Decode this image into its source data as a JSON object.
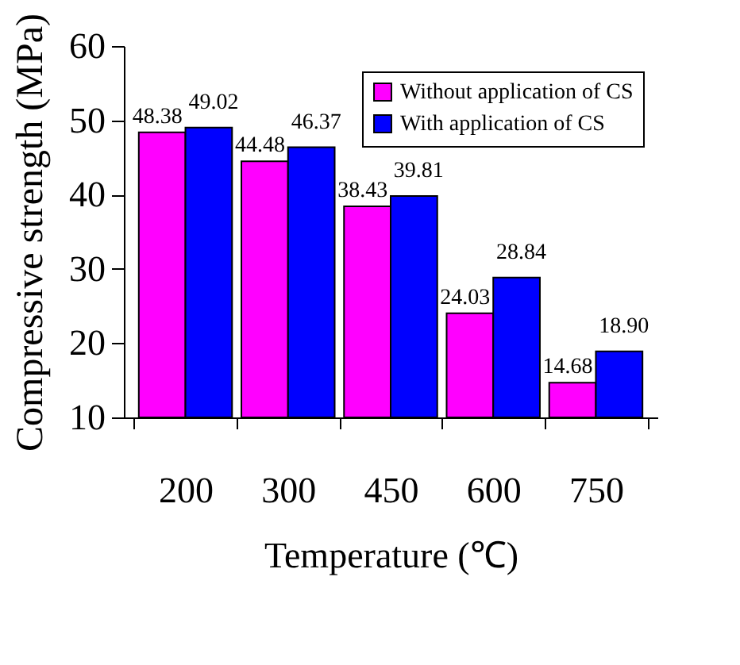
{
  "chart_data": {
    "type": "bar",
    "xlabel": "Temperature (℃)",
    "ylabel": "Compressive strength (MPa)",
    "categories": [
      "200",
      "300",
      "450",
      "600",
      "750"
    ],
    "series": [
      {
        "name": "Without application of CS",
        "color": "#ff00ff",
        "values": [
          48.38,
          44.48,
          38.43,
          24.03,
          14.68
        ]
      },
      {
        "name": "With application of CS",
        "color": "#0000ff",
        "values": [
          49.02,
          46.37,
          39.81,
          28.84,
          18.9
        ]
      }
    ],
    "value_labels": [
      [
        "48.38",
        "44.48",
        "38.43",
        "24.03",
        "14.68"
      ],
      [
        "49.02",
        "46.37",
        "39.81",
        "28.84",
        "18.90"
      ]
    ],
    "ylim": [
      10,
      60
    ],
    "yticks": [
      10,
      20,
      30,
      40,
      50,
      60
    ],
    "legend": "top right",
    "grid": false
  }
}
